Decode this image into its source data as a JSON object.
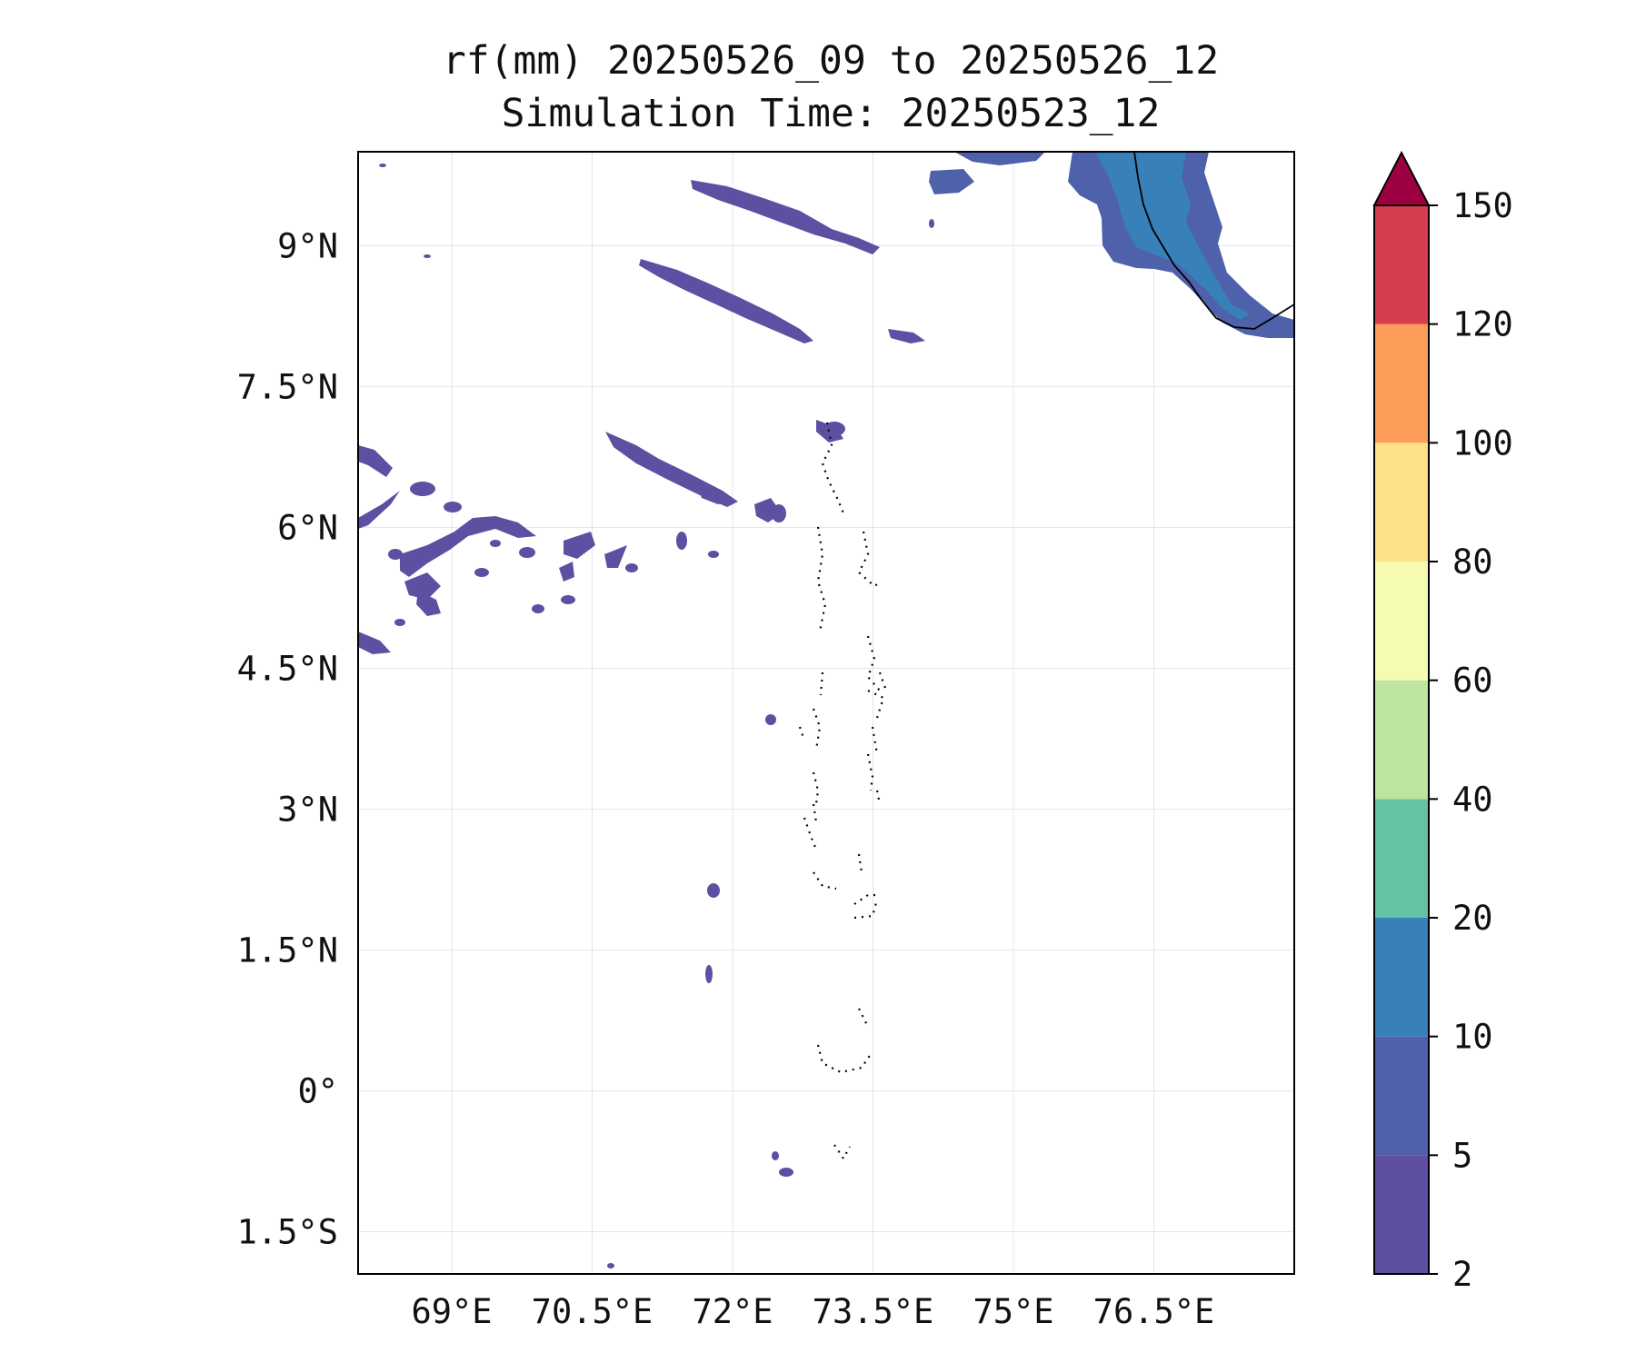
{
  "title": {
    "line1": "rf(mm) 20250526_09 to 20250526_12",
    "line2": "Simulation Time: 20250523_12"
  },
  "map": {
    "lon_range": [
      68.0,
      78.0
    ],
    "lat_range": [
      -1.95,
      10.0
    ],
    "gridlines": true,
    "lon_ticks": [
      {
        "value": 69.0,
        "label": "69°E"
      },
      {
        "value": 70.5,
        "label": "70.5°E"
      },
      {
        "value": 72.0,
        "label": "72°E"
      },
      {
        "value": 73.5,
        "label": "73.5°E"
      },
      {
        "value": 75.0,
        "label": "75°E"
      },
      {
        "value": 76.5,
        "label": "76.5°E"
      }
    ],
    "lat_ticks": [
      {
        "value": 9.0,
        "label": "9°N"
      },
      {
        "value": 7.5,
        "label": "7.5°N"
      },
      {
        "value": 6.0,
        "label": "6°N"
      },
      {
        "value": 4.5,
        "label": "4.5°N"
      },
      {
        "value": 3.0,
        "label": "3°N"
      },
      {
        "value": 1.5,
        "label": "1.5°N"
      },
      {
        "value": 0.0,
        "label": "0°"
      },
      {
        "value": -1.5,
        "label": "1.5°S"
      }
    ]
  },
  "colorbar": {
    "extend": "max",
    "extend_color": "#9e0142",
    "levels": [
      {
        "label": "2",
        "color": "#5e4fa2"
      },
      {
        "label": "5",
        "color": "#4f61aa"
      },
      {
        "label": "10",
        "color": "#3880b9"
      },
      {
        "label": "20",
        "color": "#66c2a5"
      },
      {
        "label": "40",
        "color": "#bee5a0"
      },
      {
        "label": "60",
        "color": "#f5fbb0"
      },
      {
        "label": "80",
        "color": "#fee08b"
      },
      {
        "label": "100",
        "color": "#fb9c59"
      },
      {
        "label": "120",
        "color": "#d53e4f"
      },
      {
        "label": "150",
        "color": ""
      }
    ]
  }
}
